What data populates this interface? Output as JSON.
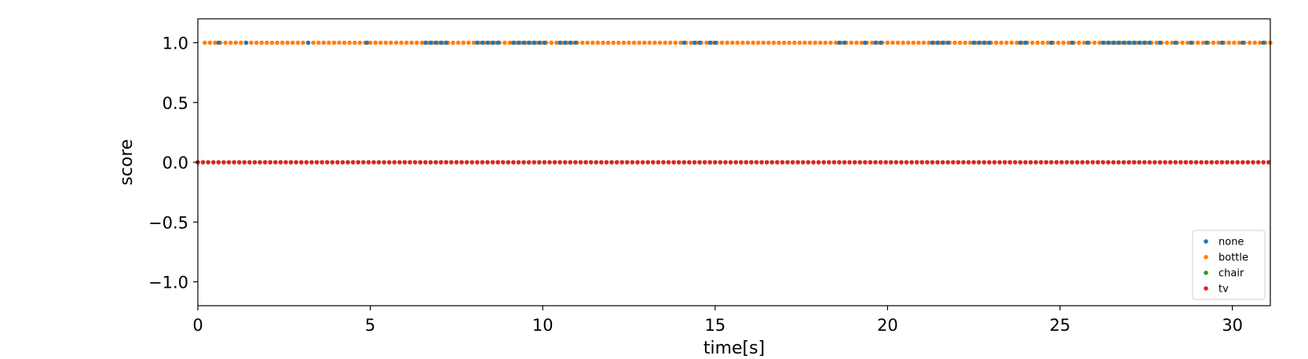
{
  "chart_data": {
    "type": "scatter",
    "title": "",
    "xlabel": "time[s]",
    "ylabel": "score",
    "xlim": [
      0,
      31.1
    ],
    "ylim": [
      -1.2,
      1.2
    ],
    "xticks": [
      0,
      5,
      10,
      15,
      20,
      25,
      30
    ],
    "yticks": [
      -1.0,
      -0.5,
      0.0,
      0.5,
      1.0
    ],
    "xtick_labels": [
      "0",
      "5",
      "10",
      "15",
      "20",
      "25",
      "30"
    ],
    "ytick_labels": [
      "−1.0",
      "−0.5",
      "0.0",
      "0.5",
      "1.0"
    ],
    "grid": false,
    "legend_position": "lower-right",
    "series": [
      {
        "name": "none",
        "color": "#1f77b4",
        "x": [
          0.6,
          1.4,
          3.2,
          4.9,
          6.6,
          6.75,
          6.9,
          7.05,
          7.2,
          8.1,
          8.25,
          8.4,
          8.55,
          8.7,
          9.15,
          9.3,
          9.45,
          9.6,
          9.75,
          9.9,
          10.05,
          10.5,
          10.65,
          10.8,
          10.95,
          14.1,
          14.4,
          14.55,
          14.85,
          15.0,
          18.6,
          18.75,
          19.35,
          19.65,
          19.8,
          21.3,
          21.45,
          21.6,
          21.75,
          22.5,
          22.65,
          22.8,
          22.95,
          23.85,
          24.0,
          24.75,
          25.35,
          25.8,
          26.25,
          26.4,
          26.55,
          26.7,
          26.85,
          27.0,
          27.15,
          27.3,
          27.45,
          27.6,
          27.9,
          28.35,
          28.8,
          29.25,
          29.7,
          30.3,
          30.9
        ],
        "y": [
          1,
          1,
          1,
          1,
          1,
          1,
          1,
          1,
          1,
          1,
          1,
          1,
          1,
          1,
          1,
          1,
          1,
          1,
          1,
          1,
          1,
          1,
          1,
          1,
          1,
          1,
          1,
          1,
          1,
          1,
          1,
          1,
          1,
          1,
          1,
          1,
          1,
          1,
          1,
          1,
          1,
          1,
          1,
          1,
          1,
          1,
          1,
          1,
          1,
          1,
          1,
          1,
          1,
          1,
          1,
          1,
          1,
          1,
          1,
          1,
          1,
          1,
          1,
          1,
          1
        ]
      },
      {
        "name": "bottle",
        "color": "#ff7f0e",
        "dense_y1": {
          "start": 0.2,
          "end": 31.1,
          "step": 0.15
        },
        "dense_y0": {
          "start": 0.0,
          "end": 31.1,
          "step": 0.15
        }
      },
      {
        "name": "chair",
        "color": "#2ca02c"
      },
      {
        "name": "tv",
        "color": "#d62728",
        "dense_y0": {
          "start": 0.0,
          "end": 31.1,
          "step": 0.15
        }
      }
    ]
  }
}
